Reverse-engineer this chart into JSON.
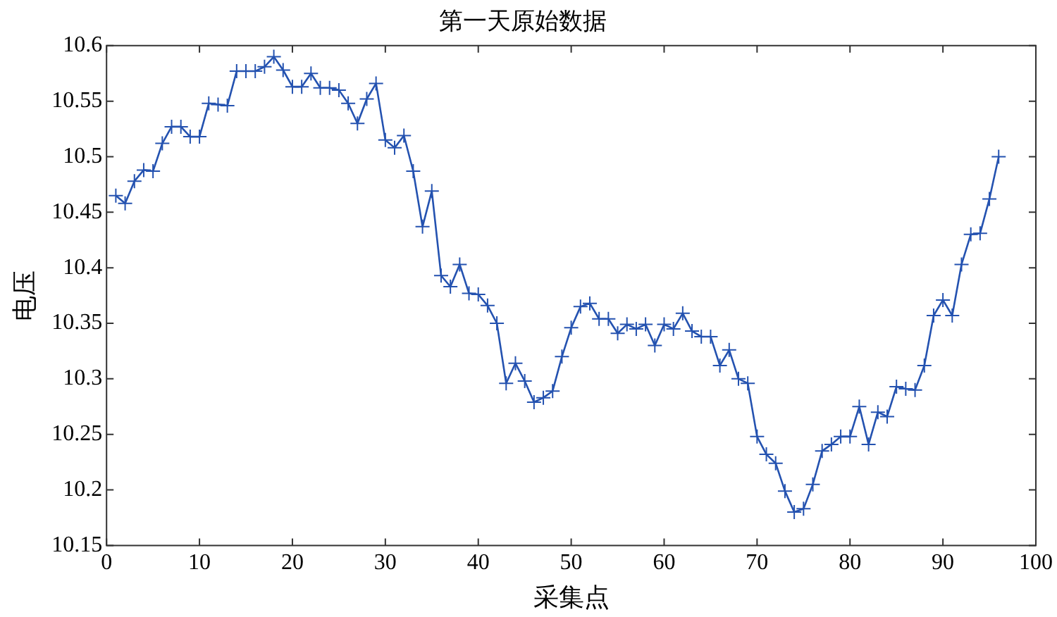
{
  "chart_data": {
    "type": "line",
    "title": "第一天原始数据",
    "xlabel": "采集点",
    "ylabel": "电压",
    "x": [
      1,
      2,
      3,
      4,
      5,
      6,
      7,
      8,
      9,
      10,
      11,
      12,
      13,
      14,
      15,
      16,
      17,
      18,
      19,
      20,
      21,
      22,
      23,
      24,
      25,
      26,
      27,
      28,
      29,
      30,
      31,
      32,
      33,
      34,
      35,
      36,
      37,
      38,
      39,
      40,
      41,
      42,
      43,
      44,
      45,
      46,
      47,
      48,
      49,
      50,
      51,
      52,
      53,
      54,
      55,
      56,
      57,
      58,
      59,
      60,
      61,
      62,
      63,
      64,
      65,
      66,
      67,
      68,
      69,
      70,
      71,
      72,
      73,
      74,
      75,
      76,
      77,
      78,
      79,
      80,
      81,
      82,
      83,
      84,
      85,
      86,
      87,
      88,
      89,
      90,
      91,
      92,
      93,
      94,
      95,
      96
    ],
    "series": [
      {
        "color": "#2452b0",
        "values": [
          10.465,
          10.458,
          10.478,
          10.488,
          10.487,
          10.512,
          10.527,
          10.527,
          10.518,
          10.518,
          10.548,
          10.547,
          10.546,
          10.577,
          10.577,
          10.577,
          10.581,
          10.59,
          10.578,
          10.563,
          10.563,
          10.575,
          10.562,
          10.562,
          10.56,
          10.548,
          10.53,
          10.552,
          10.566,
          10.515,
          10.508,
          10.519,
          10.487,
          10.437,
          10.469,
          10.393,
          10.383,
          10.403,
          10.377,
          10.376,
          10.366,
          10.35,
          10.296,
          10.314,
          10.298,
          10.279,
          10.283,
          10.289,
          10.32,
          10.346,
          10.365,
          10.368,
          10.354,
          10.354,
          10.341,
          10.349,
          10.345,
          10.349,
          10.33,
          10.349,
          10.345,
          10.359,
          10.343,
          10.338,
          10.338,
          10.312,
          10.326,
          10.3,
          10.296,
          10.248,
          10.232,
          10.224,
          10.199,
          10.18,
          10.183,
          10.205,
          10.235,
          10.241,
          10.248,
          10.248,
          10.275,
          10.241,
          10.27,
          10.266,
          10.293,
          10.291,
          10.29,
          10.312,
          10.357,
          10.371,
          10.357,
          10.403,
          10.43,
          10.431,
          10.462,
          10.5
        ]
      }
    ],
    "xlim": [
      0,
      100
    ],
    "xticks": [
      0,
      10,
      20,
      30,
      40,
      50,
      60,
      70,
      80,
      90,
      100
    ],
    "ylim": [
      10.15,
      10.6
    ],
    "yticks": [
      10.15,
      10.2,
      10.25,
      10.3,
      10.35,
      10.4,
      10.45,
      10.5,
      10.55,
      10.6
    ],
    "marker": "cross",
    "line_style": "solid",
    "legend": false,
    "grid": false
  }
}
